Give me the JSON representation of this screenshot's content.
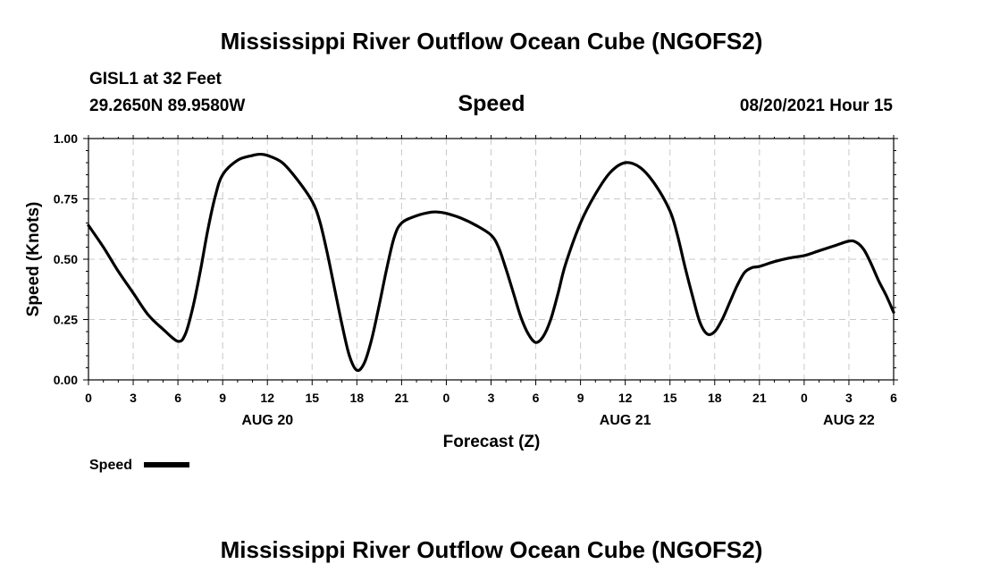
{
  "header": {
    "title_top": "Mississippi River Outflow Ocean Cube (NGOFS2)",
    "station": "GISL1 at 32 Feet",
    "coords": "29.2650N  89.9580W",
    "chart_title": "Speed",
    "datetime": "08/20/2021 Hour 15",
    "title_bottom": "Mississippi River Outflow Ocean Cube (NGOFS2)"
  },
  "chart_data": {
    "type": "line",
    "title": "Speed",
    "xlabel": "Forecast (Z)",
    "ylabel": "Speed (Knots)",
    "xlim": [
      0,
      54
    ],
    "ylim": [
      0,
      1
    ],
    "grid": true,
    "legend_placement": "bottom-left",
    "x_unit": "hours from 00Z Aug 20 2021",
    "x_ticks": [
      0,
      3,
      6,
      9,
      12,
      15,
      18,
      21,
      24,
      27,
      30,
      33,
      36,
      39,
      42,
      45,
      48,
      51,
      54
    ],
    "x_tick_labels": [
      "0",
      "3",
      "6",
      "9",
      "12",
      "15",
      "18",
      "21",
      "0",
      "3",
      "6",
      "9",
      "12",
      "15",
      "18",
      "21",
      "0",
      "3",
      "6"
    ],
    "y_ticks": [
      0,
      0.25,
      0.5,
      0.75,
      1.0
    ],
    "y_tick_labels": [
      "0.00",
      "0.25",
      "0.50",
      "0.75",
      "1.00"
    ],
    "date_labels": [
      {
        "x": 12,
        "label": "AUG 20"
      },
      {
        "x": 36,
        "label": "AUG 21"
      },
      {
        "x": 51,
        "label": "AUG 22"
      }
    ],
    "series": [
      {
        "name": "Speed",
        "color": "#000000",
        "x": [
          0,
          1,
          2,
          3,
          4,
          5,
          6,
          6.5,
          7,
          7.5,
          8,
          8.5,
          9,
          10,
          11,
          11.5,
          12,
          13,
          14,
          15,
          15.5,
          16,
          16.5,
          17,
          17.5,
          18,
          18.5,
          19,
          19.5,
          20,
          20.5,
          21,
          22,
          23,
          23.5,
          24,
          25,
          26,
          27,
          27.5,
          28,
          28.5,
          29,
          29.5,
          30,
          30.5,
          31,
          31.5,
          32,
          33,
          34,
          35,
          36,
          37,
          38,
          39,
          39.5,
          40,
          40.5,
          41,
          41.5,
          42,
          42.5,
          43,
          43.5,
          44,
          44.5,
          45,
          46,
          47,
          48,
          49,
          50,
          51,
          51.5,
          52,
          52.5,
          53,
          53.5,
          54
        ],
        "values": [
          0.64,
          0.55,
          0.45,
          0.36,
          0.27,
          0.21,
          0.16,
          0.19,
          0.3,
          0.45,
          0.62,
          0.76,
          0.85,
          0.91,
          0.93,
          0.935,
          0.93,
          0.9,
          0.83,
          0.74,
          0.66,
          0.53,
          0.38,
          0.23,
          0.1,
          0.04,
          0.07,
          0.17,
          0.31,
          0.46,
          0.59,
          0.65,
          0.68,
          0.695,
          0.695,
          0.69,
          0.67,
          0.64,
          0.6,
          0.55,
          0.46,
          0.36,
          0.26,
          0.19,
          0.155,
          0.18,
          0.25,
          0.36,
          0.48,
          0.65,
          0.77,
          0.86,
          0.9,
          0.88,
          0.81,
          0.7,
          0.6,
          0.47,
          0.35,
          0.24,
          0.19,
          0.2,
          0.25,
          0.32,
          0.39,
          0.445,
          0.465,
          0.47,
          0.49,
          0.505,
          0.515,
          0.535,
          0.555,
          0.575,
          0.57,
          0.54,
          0.48,
          0.41,
          0.35,
          0.28
        ]
      }
    ]
  },
  "legend": {
    "label": "Speed",
    "color": "#000000"
  }
}
